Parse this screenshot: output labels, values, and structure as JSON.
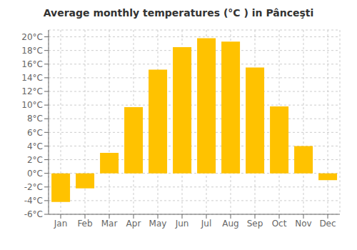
{
  "chart_data": {
    "type": "bar",
    "title": "Average monthly temperatures (°C ) in Pânceşti",
    "categories": [
      "Jan",
      "Feb",
      "Mar",
      "Apr",
      "May",
      "Jun",
      "Jul",
      "Aug",
      "Sep",
      "Oct",
      "Nov",
      "Dec"
    ],
    "values": [
      -4.2,
      -2.2,
      3.0,
      9.7,
      15.2,
      18.5,
      19.8,
      19.3,
      15.5,
      9.8,
      4.0,
      -1.0
    ],
    "color": "#FFC200",
    "ylim": [
      -6,
      21
    ],
    "yticks": [
      {
        "value": -6,
        "label": "-6°C"
      },
      {
        "value": -4,
        "label": "-4°C"
      },
      {
        "value": -2,
        "label": "-2°C"
      },
      {
        "value": 0,
        "label": "0°C"
      },
      {
        "value": 2,
        "label": "2°C"
      },
      {
        "value": 4,
        "label": "4°C"
      },
      {
        "value": 6,
        "label": "6°C"
      },
      {
        "value": 8,
        "label": "8°C"
      },
      {
        "value": 10,
        "label": "10°C"
      },
      {
        "value": 12,
        "label": "12°C"
      },
      {
        "value": 14,
        "label": "14°C"
      },
      {
        "value": 16,
        "label": "16°C"
      },
      {
        "value": 18,
        "label": "18°C"
      },
      {
        "value": 20,
        "label": "20°C"
      }
    ],
    "grid": true
  }
}
